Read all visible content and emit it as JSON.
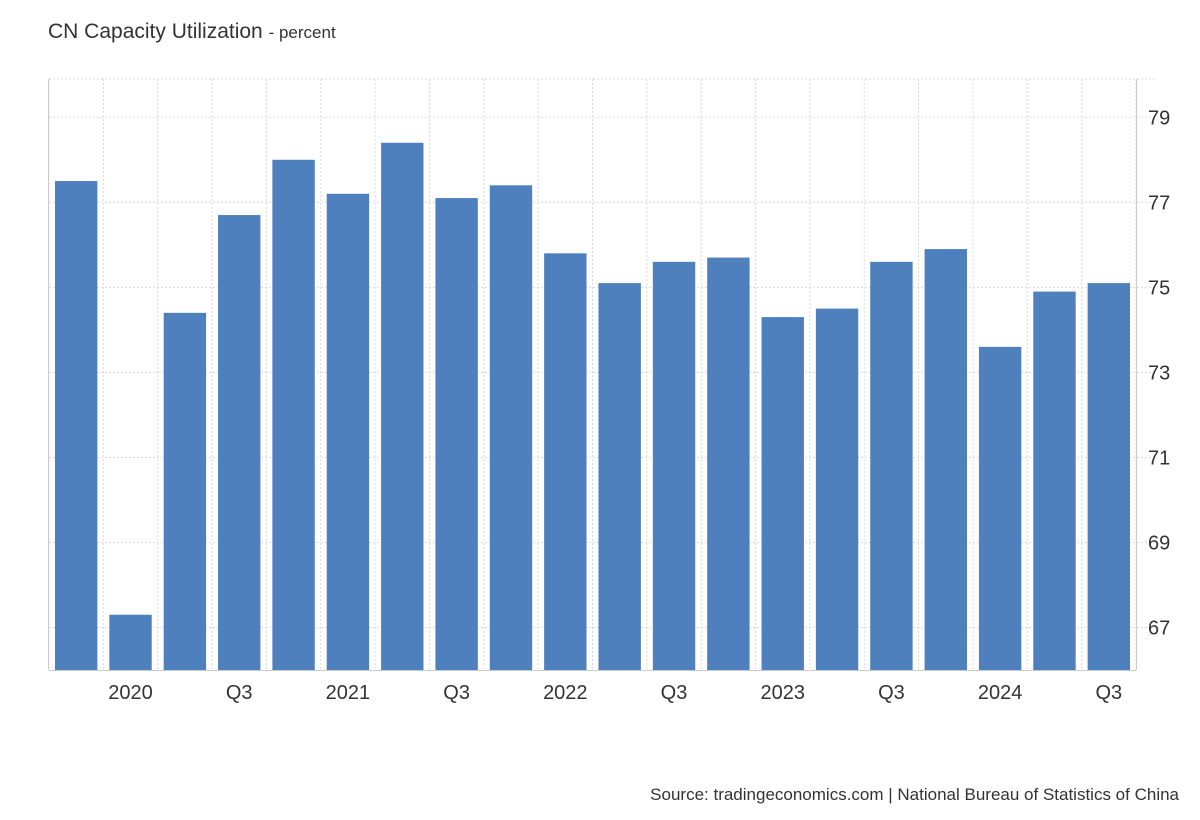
{
  "title": "CN Capacity Utilization",
  "subtitle": "- percent",
  "source": "Source: tradingeconomics.com | National Bureau of Statistics of China",
  "colors": {
    "bar": "#4d80bd",
    "grid": "#d9d9d9",
    "axis": "#cccccc",
    "text": "#333333"
  },
  "chart_data": {
    "type": "bar",
    "categories": [
      "2019 Q4",
      "2020 Q1",
      "2020 Q2",
      "2020 Q3",
      "2020 Q4",
      "2021 Q1",
      "2021 Q2",
      "2021 Q3",
      "2021 Q4",
      "2022 Q1",
      "2022 Q2",
      "2022 Q3",
      "2022 Q4",
      "2023 Q1",
      "2023 Q2",
      "2023 Q3",
      "2023 Q4",
      "2024 Q1",
      "2024 Q2",
      "2024 Q3"
    ],
    "values": [
      77.5,
      67.3,
      74.4,
      76.7,
      78.0,
      77.2,
      78.4,
      77.1,
      77.4,
      75.8,
      75.1,
      75.6,
      75.7,
      74.3,
      74.5,
      75.6,
      75.9,
      73.6,
      74.9,
      75.1
    ],
    "x_tick_labels": [
      "2020",
      "Q3",
      "2021",
      "Q3",
      "2022",
      "Q3",
      "2023",
      "Q3",
      "2024",
      "Q3"
    ],
    "x_tick_positions": [
      1,
      3,
      5,
      7,
      9,
      11,
      13,
      15,
      17,
      19
    ],
    "y_ticks": [
      67,
      69,
      71,
      73,
      75,
      77,
      79
    ],
    "ylim": [
      66.0,
      79.9
    ],
    "y_axis_side": "right",
    "grid": true,
    "legend": "none"
  }
}
